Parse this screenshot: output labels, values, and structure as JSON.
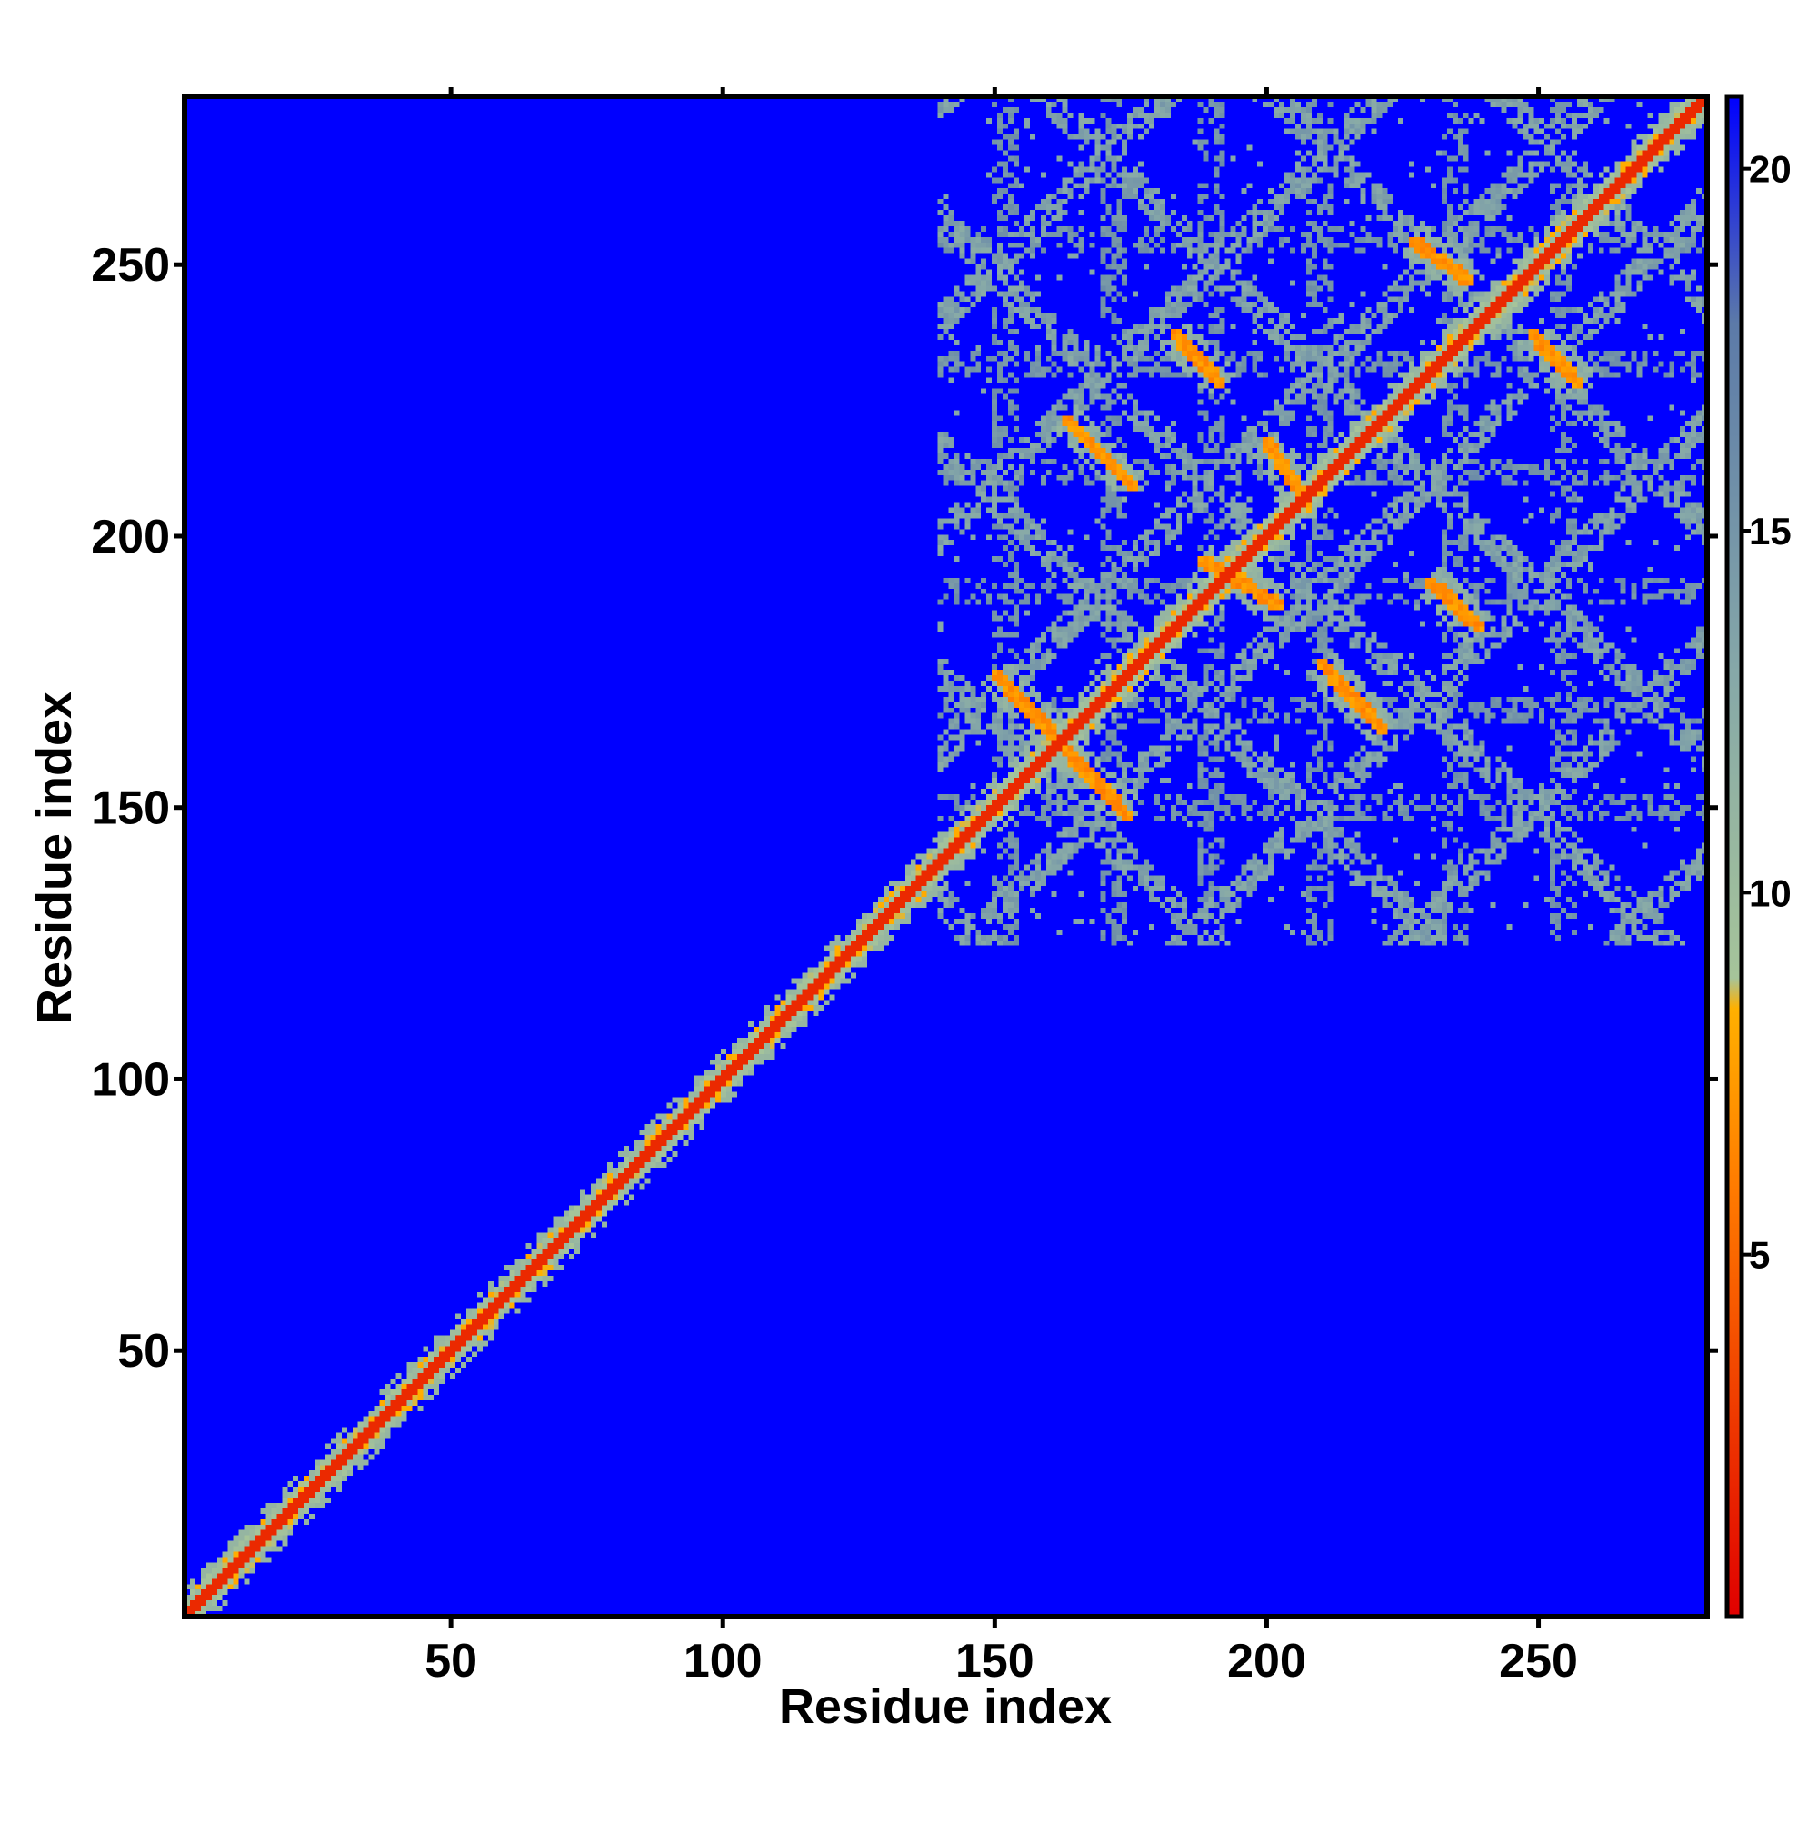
{
  "chart_data": {
    "type": "heatmap",
    "title": "",
    "xlabel": "Residue index",
    "ylabel": "Residue index",
    "xlim": [
      1,
      281
    ],
    "ylim": [
      1,
      281
    ],
    "xticks": [
      50,
      100,
      150,
      200,
      250
    ],
    "yticks": [
      50,
      100,
      150,
      200,
      250
    ],
    "n_residues": 281,
    "colorbar": {
      "ticks": [
        5,
        10,
        15,
        20
      ],
      "range": [
        0,
        21
      ],
      "colors": [
        "#e00000",
        "#ff7a00",
        "#ffb000",
        "#a6c49a",
        "#86a8a8",
        "#5c7aa8",
        "#0000ff"
      ],
      "stops": [
        0,
        0.28,
        0.4,
        0.42,
        0.62,
        0.85,
        1.0
      ]
    },
    "background_value": 21,
    "background_color": "#0000ff",
    "diagonal": {
      "from": 1,
      "to": 281,
      "core_value": 2,
      "halo_value": 10
    },
    "domain_region": {
      "x": [
        140,
        281
      ],
      "y": [
        125,
        281
      ]
    },
    "contact_bands": [
      {
        "x": [
          150,
          175
        ],
        "y": [
          175,
          148
        ],
        "value": 6
      },
      {
        "x": [
          163,
          176
        ],
        "y": [
          222,
          209
        ],
        "value": 6
      },
      {
        "x": [
          183,
          192
        ],
        "y": [
          238,
          228
        ],
        "value": 6
      },
      {
        "x": [
          188,
          203
        ],
        "y": [
          196,
          187
        ],
        "value": 6
      },
      {
        "x": [
          200,
          208
        ],
        "y": [
          218,
          206
        ],
        "value": 6
      },
      {
        "x": [
          210,
          222
        ],
        "y": [
          177,
          164
        ],
        "value": 6
      },
      {
        "x": [
          227,
          238
        ],
        "y": [
          255,
          247
        ],
        "value": 6
      },
      {
        "x": [
          230,
          240
        ],
        "y": [
          192,
          183
        ],
        "value": 6
      },
      {
        "x": [
          249,
          258
        ],
        "y": [
          238,
          228
        ],
        "value": 6
      }
    ],
    "grid_lines": {
      "verticals": [
        152,
        172,
        190,
        210,
        235,
        255
      ],
      "horizontals": [
        150,
        168,
        190,
        212,
        232,
        255
      ],
      "value": 12
    }
  }
}
